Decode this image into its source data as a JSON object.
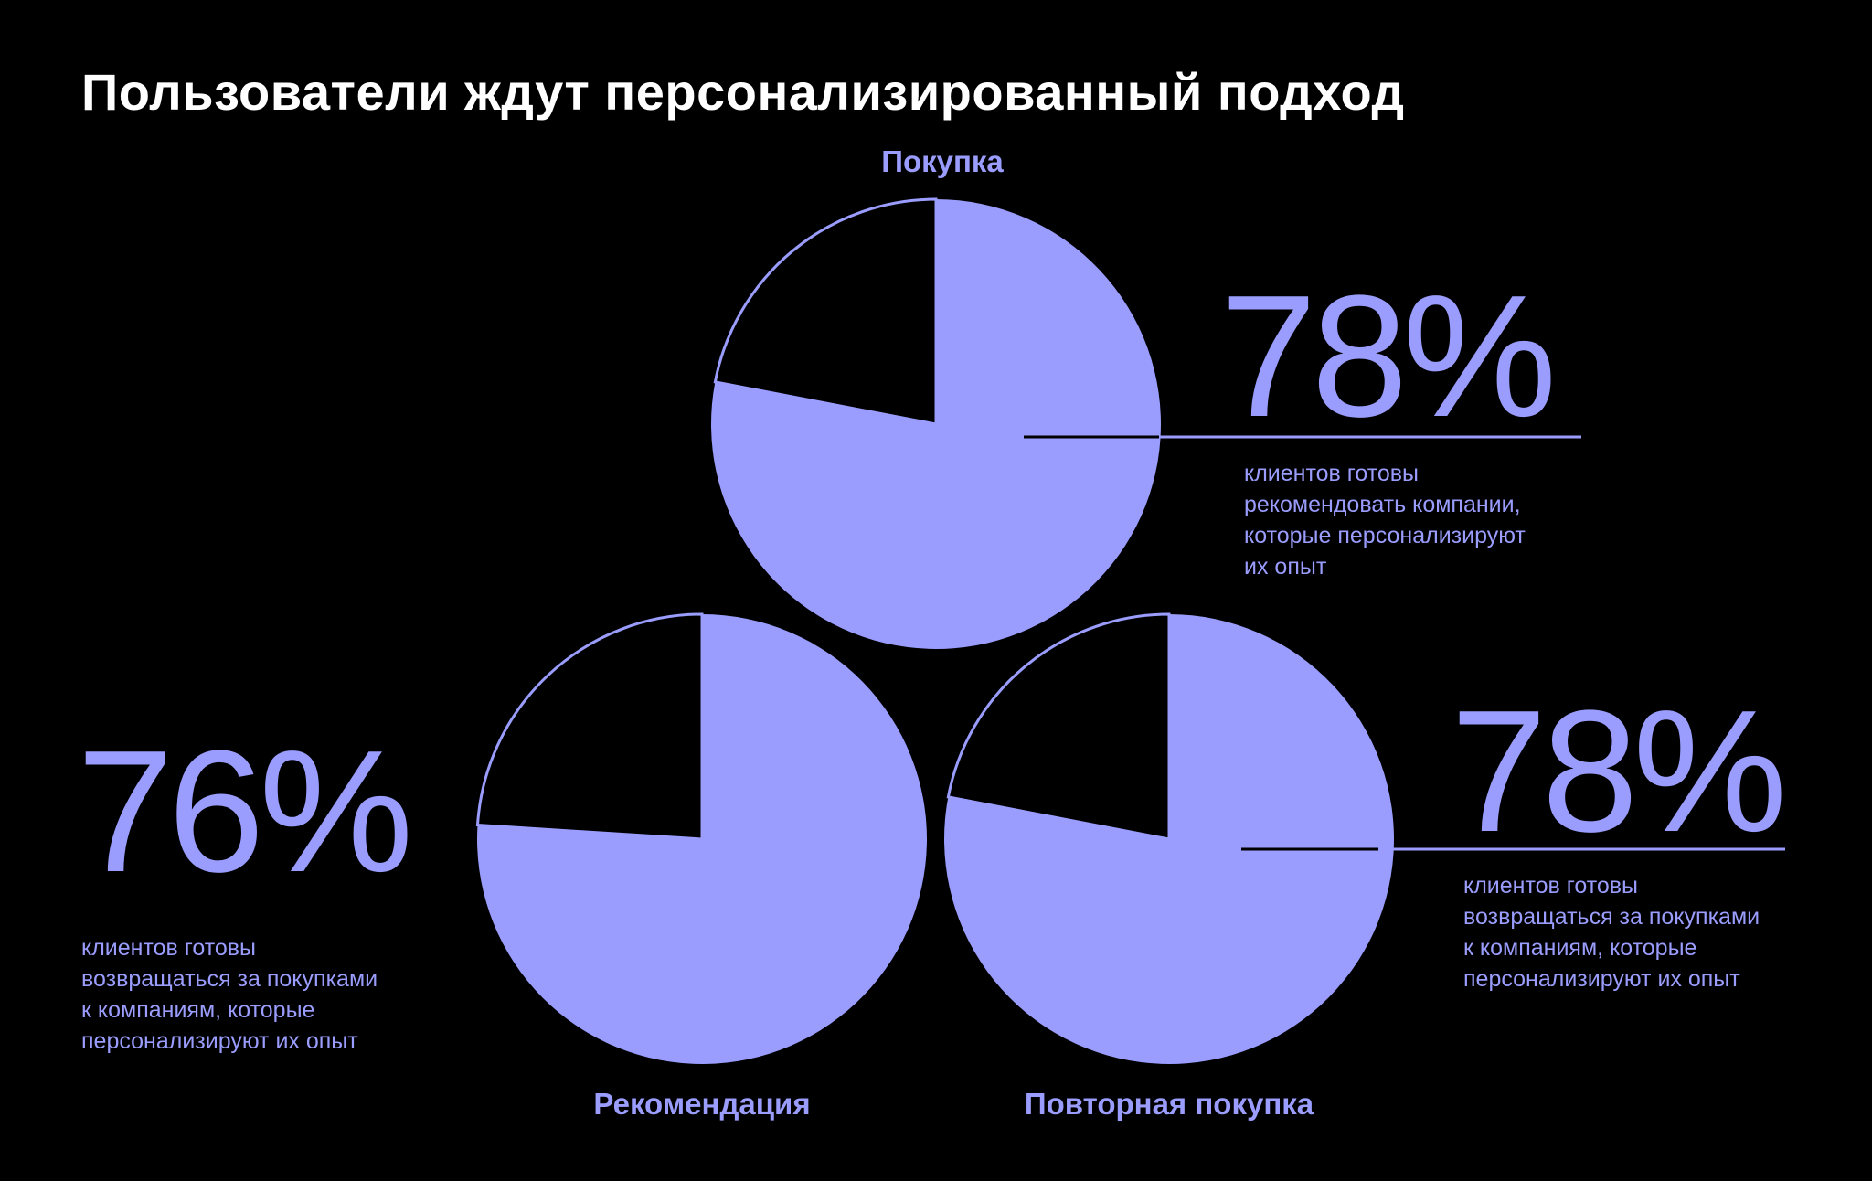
{
  "title": "Пользователи ждут персонализированный подход",
  "colors": {
    "accent": "#9a9dfd",
    "background": "#000000",
    "text": "#ffffff"
  },
  "chart_data": [
    {
      "type": "pie",
      "id": "top",
      "label": "Покупка",
      "value": 78,
      "value_label": "78%",
      "description": [
        "клиентов готовы",
        "рекомендовать компании,",
        "которые персонализируют",
        "их опыт"
      ]
    },
    {
      "type": "pie",
      "id": "left",
      "label": "Рекомендация",
      "value": 76,
      "value_label": "76%",
      "description": [
        "клиентов готовы",
        "возвращаться за покупками",
        "к компаниям, которые",
        "персонализируют их опыт"
      ]
    },
    {
      "type": "pie",
      "id": "right",
      "label": "Повторная покупка",
      "value": 78,
      "value_label": "78%",
      "description": [
        "клиентов готовы",
        "возвращаться за покупками",
        "к компаниям, которые",
        "персонализируют их опыт"
      ]
    }
  ]
}
